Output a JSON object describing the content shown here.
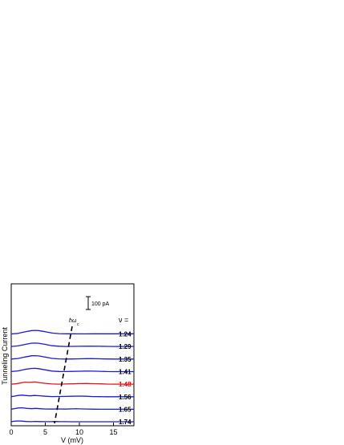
{
  "chart_data": {
    "type": "line",
    "title": "",
    "xlabel": "V  (mV)",
    "ylabel": "Tunneling Current",
    "xlim": [
      0,
      18
    ],
    "x_ticks": [
      0,
      5,
      10,
      15
    ],
    "x_tick_labels": [
      "0",
      "5",
      "10",
      "15"
    ],
    "grid": false,
    "legend_header": "ν =",
    "scale_bar_label": "100 pA",
    "scale_bar_pA": 100,
    "annotation_label": "ħω",
    "annotation_subscript": "c",
    "colors": {
      "default": "#1a1adb",
      "highlight": "#e01515",
      "axis": "#000000"
    },
    "series": [
      {
        "name": "1.24",
        "color": "#1a1adb",
        "x": [
          0,
          1,
          2,
          3,
          3.5,
          4,
          5,
          6,
          7,
          8,
          9,
          10,
          11,
          12,
          13,
          14,
          15,
          16,
          17,
          18
        ],
        "y": [
          12,
          40,
          115,
          176,
          182,
          175,
          120,
          55,
          28,
          20,
          18,
          17,
          17,
          18,
          18,
          18,
          18,
          18,
          18,
          18
        ]
      },
      {
        "name": "1.29",
        "color": "#1a1adb",
        "x": [
          0,
          1,
          2,
          3,
          3.5,
          4,
          5,
          6,
          7,
          8,
          9,
          10,
          11,
          12,
          13,
          14,
          15,
          16,
          17,
          18
        ],
        "y": [
          10,
          38,
          110,
          170,
          176,
          168,
          112,
          48,
          22,
          12,
          14,
          20,
          23,
          22,
          18,
          14,
          12,
          11,
          11,
          11
        ]
      },
      {
        "name": "1.35",
        "color": "#1a1adb",
        "x": [
          0,
          1,
          2,
          3,
          3.5,
          4,
          5,
          6,
          7,
          8,
          9,
          10,
          11,
          12,
          13,
          14,
          15,
          16,
          17,
          18
        ],
        "y": [
          9,
          35,
          105,
          168,
          172,
          162,
          102,
          40,
          14,
          6,
          10,
          20,
          28,
          28,
          20,
          12,
          7,
          6,
          6,
          6
        ]
      },
      {
        "name": "1.41",
        "color": "#1a1adb",
        "x": [
          0,
          1,
          2,
          3,
          3.5,
          4,
          5,
          6,
          7,
          8,
          9,
          10,
          11,
          12,
          13,
          14,
          15,
          16,
          17,
          18
        ],
        "y": [
          9,
          40,
          112,
          162,
          166,
          150,
          90,
          32,
          10,
          8,
          14,
          24,
          30,
          28,
          18,
          9,
          5,
          4,
          4,
          4
        ]
      },
      {
        "name": "1.48",
        "color": "#e01515",
        "x": [
          0,
          0.7,
          1.3,
          2,
          2.5,
          3,
          3.4,
          3.8,
          4.2,
          5,
          6,
          7,
          8,
          9,
          10,
          11,
          12,
          13,
          14,
          15,
          16,
          17,
          18
        ],
        "y": [
          4,
          18,
          60,
          100,
          88,
          96,
          108,
          96,
          72,
          42,
          12,
          5,
          10,
          20,
          30,
          34,
          28,
          18,
          9,
          4,
          3,
          3,
          3
        ]
      },
      {
        "name": "1.56",
        "color": "#1a1adb",
        "x": [
          0,
          0.5,
          1,
          1.6,
          2.2,
          2.8,
          3.4,
          4,
          5,
          6,
          7,
          8,
          9,
          10,
          11,
          12,
          13,
          14,
          15,
          16,
          17,
          18
        ],
        "y": [
          3,
          30,
          62,
          78,
          58,
          44,
          62,
          50,
          22,
          8,
          12,
          14,
          22,
          30,
          22,
          9,
          3,
          1,
          1,
          1,
          1,
          1
        ]
      },
      {
        "name": "1.65",
        "color": "#1a1adb",
        "x": [
          0,
          0.5,
          1,
          1.6,
          2.3,
          3,
          3.6,
          4.2,
          5,
          6,
          7,
          8,
          9,
          9.5,
          10,
          11,
          12,
          13,
          14,
          15,
          16,
          17,
          18
        ],
        "y": [
          2,
          32,
          62,
          72,
          42,
          28,
          42,
          28,
          10,
          8,
          14,
          8,
          18,
          22,
          20,
          10,
          3,
          0,
          0,
          0,
          0,
          0,
          0
        ]
      },
      {
        "name": "1.74",
        "color": "#1a1adb",
        "x": [
          0,
          0.4,
          0.9,
          1.5,
          2.2,
          2.9,
          3.5,
          4.2,
          5,
          5.8,
          6.5,
          7.2,
          8,
          9,
          10,
          11,
          12,
          13,
          14,
          15,
          16,
          17,
          18
        ],
        "y": [
          1,
          22,
          38,
          30,
          10,
          4,
          14,
          8,
          2,
          5,
          10,
          4,
          2,
          1,
          0,
          0,
          0,
          0,
          0,
          0,
          0,
          0,
          0
        ]
      }
    ]
  }
}
